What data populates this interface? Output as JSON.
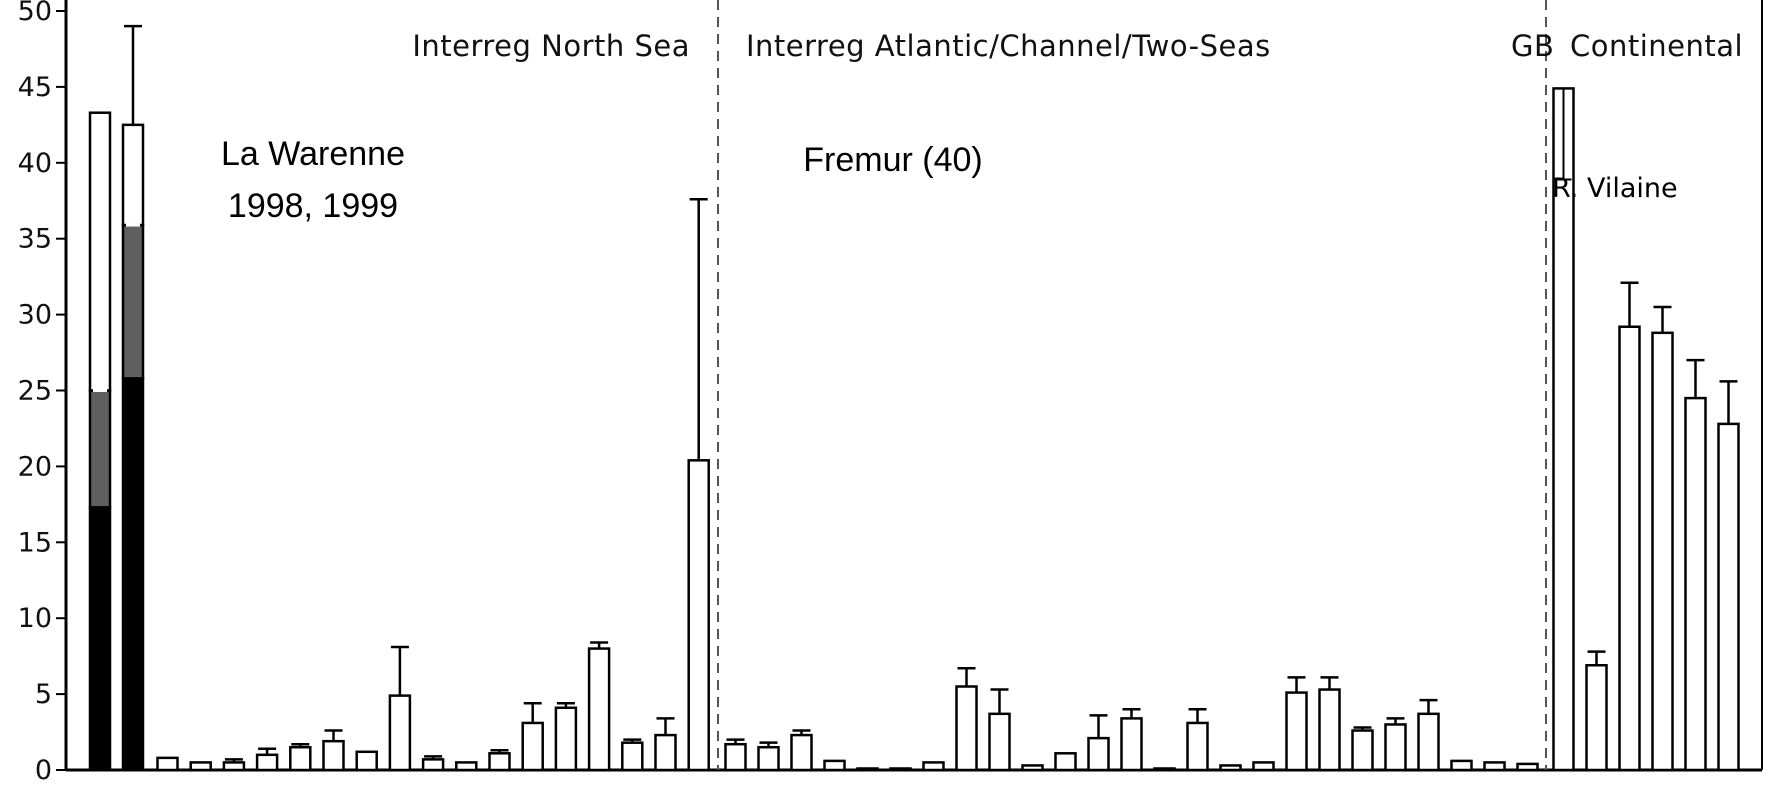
{
  "chart_data": {
    "type": "bar",
    "title": "",
    "xlabel": "",
    "ylabel": "",
    "ylim": [
      0,
      50
    ],
    "yticks": [
      "0",
      "5",
      "10",
      "15",
      "20",
      "25",
      "30",
      "35",
      "40",
      "45",
      "50"
    ],
    "grid": false,
    "regions": [
      {
        "label": "Interreg North Sea"
      },
      {
        "label": "Interreg Atlantic/Channel/Two-Seas"
      },
      {
        "label": "GB"
      },
      {
        "label": "Continental"
      }
    ],
    "annotations": [
      {
        "text": "La Warenne"
      },
      {
        "text": "1998, 1999"
      },
      {
        "text": "Fremur (40)"
      },
      {
        "text": "R. Vilaine"
      }
    ],
    "stacked_bars": [
      {
        "segments": [
          {
            "value": 17.3,
            "color": "#000000"
          },
          {
            "value": 7.7,
            "color": "#5f5f5f"
          },
          {
            "value": 18.3,
            "color": "#ffffff"
          }
        ]
      },
      {
        "segments": [
          {
            "value": 25.8,
            "color": "#000000"
          },
          {
            "value": 10.1,
            "color": "#5f5f5f"
          },
          {
            "value": 6.6,
            "color": "#ffffff"
          }
        ],
        "error": 49.0
      }
    ],
    "values": [
      0.8,
      0.5,
      0.5,
      1.0,
      1.5,
      1.9,
      1.2,
      4.9,
      0.7,
      0.5,
      1.1,
      3.1,
      4.1,
      8.0,
      1.8,
      2.3,
      20.4,
      1.7,
      1.5,
      2.3,
      0.6,
      0.1,
      0.1,
      0.5,
      5.5,
      3.7,
      0.3,
      1.1,
      2.1,
      3.4,
      0.1,
      3.1,
      0.3,
      0.5,
      5.1,
      5.3,
      2.6,
      3.0,
      3.7,
      0.6,
      0.5,
      0.4,
      44.9,
      6.9,
      29.2,
      28.8,
      24.5,
      22.8
    ],
    "errors": [
      null,
      null,
      0.7,
      1.4,
      1.7,
      2.6,
      null,
      8.1,
      0.9,
      null,
      1.3,
      4.4,
      4.4,
      8.4,
      2.0,
      3.4,
      37.6,
      2.0,
      1.8,
      2.6,
      null,
      null,
      null,
      null,
      6.7,
      5.3,
      null,
      null,
      3.6,
      4.0,
      null,
      4.0,
      null,
      null,
      6.1,
      6.1,
      2.8,
      3.4,
      4.6,
      null,
      null,
      null,
      null,
      7.8,
      32.1,
      30.5,
      27.0,
      25.6
    ],
    "color": "#ffffff"
  }
}
